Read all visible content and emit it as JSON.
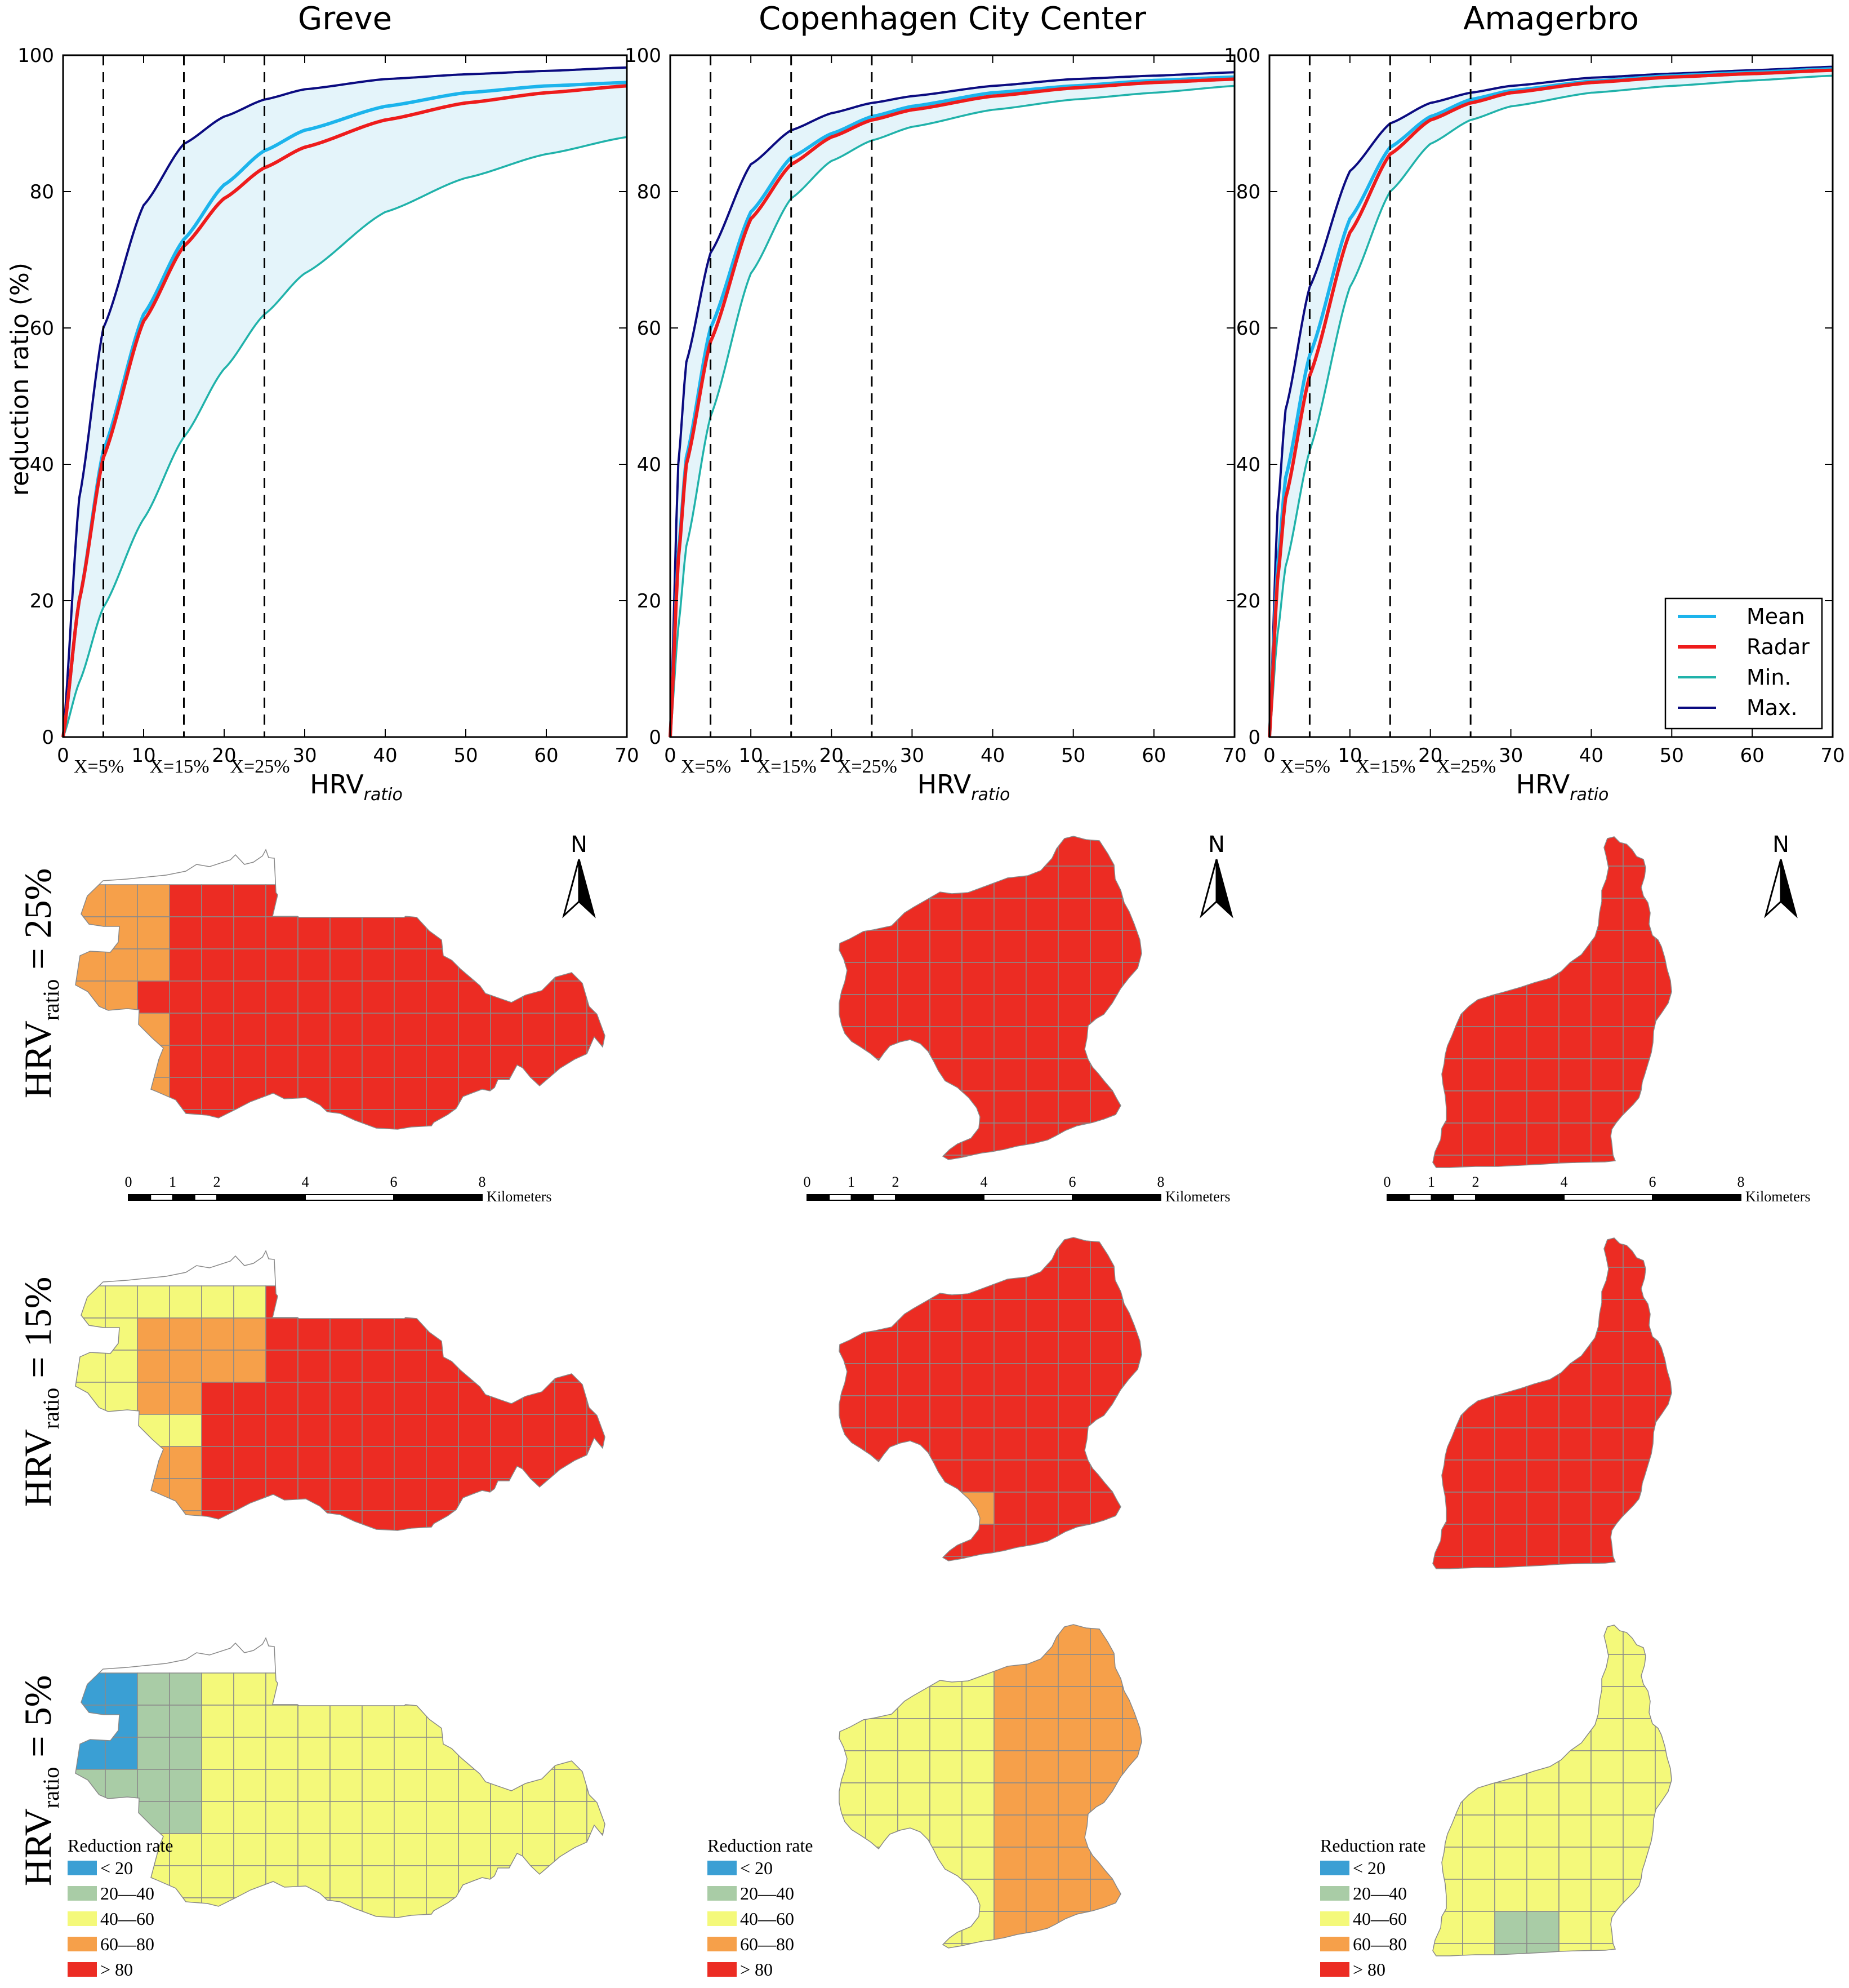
{
  "colors": {
    "mean": "#1cb4ec",
    "radar": "#ee1c1c",
    "min": "#20b2aa",
    "max": "#0b0b80",
    "band": "#e4f4fa",
    "class_lt20": "#3a9fd4",
    "class_20_40": "#a9cca6",
    "class_40_60": "#f4f97a",
    "class_60_80": "#f6a04a",
    "class_gt80": "#ec2c23"
  },
  "chart_data": [
    {
      "type": "line",
      "title": "Greve",
      "xlabel": "HRV",
      "xlabel_sub": "ratio",
      "ylabel": "reduction ratio (%)",
      "xlim": [
        0,
        70
      ],
      "ylim": [
        0,
        100
      ],
      "xticks": [
        "0",
        "10",
        "20",
        "30",
        "40",
        "50",
        "60",
        "70"
      ],
      "yticks": [
        "0",
        "20",
        "40",
        "60",
        "80",
        "100"
      ],
      "vlines": [
        5,
        15,
        25
      ],
      "vline_labels": [
        "X=5%",
        "X=15%",
        "X=25%"
      ],
      "x": [
        0,
        2,
        5,
        10,
        15,
        20,
        25,
        30,
        40,
        50,
        60,
        70
      ],
      "series": [
        {
          "name": "Mean",
          "values": [
            0,
            20,
            42,
            62,
            73,
            81,
            86,
            89,
            92.5,
            94.5,
            95.5,
            96
          ]
        },
        {
          "name": "Radar",
          "values": [
            0,
            20,
            41,
            61,
            72,
            79,
            83.5,
            86.5,
            90.5,
            93,
            94.5,
            95.5
          ]
        },
        {
          "name": "Min.",
          "values": [
            0,
            8,
            19,
            32,
            44,
            54,
            62,
            68,
            77,
            82,
            85.5,
            88
          ]
        },
        {
          "name": "Max.",
          "values": [
            0,
            35,
            60,
            78,
            87,
            91,
            93.5,
            95,
            96.5,
            97.2,
            97.7,
            98.2
          ]
        }
      ]
    },
    {
      "type": "line",
      "title": "Copenhagen City Center",
      "xlabel": "HRV",
      "xlabel_sub": "ratio",
      "ylabel": "",
      "xlim": [
        0,
        70
      ],
      "ylim": [
        0,
        100
      ],
      "xticks": [
        "0",
        "10",
        "20",
        "30",
        "40",
        "50",
        "60",
        "70"
      ],
      "yticks": [
        "0",
        "20",
        "40",
        "60",
        "80",
        "100"
      ],
      "vlines": [
        5,
        15,
        25
      ],
      "vline_labels": [
        "X=5%",
        "X=15%",
        "X=25%"
      ],
      "x": [
        0,
        1,
        2,
        5,
        10,
        15,
        20,
        25,
        30,
        40,
        50,
        60,
        70
      ],
      "series": [
        {
          "name": "Mean",
          "values": [
            0,
            27,
            41,
            60,
            77,
            85,
            88.5,
            91,
            92.5,
            94.5,
            95.5,
            96.3,
            96.8
          ]
        },
        {
          "name": "Radar",
          "values": [
            0,
            26,
            40,
            58,
            76,
            84,
            88,
            90.5,
            92,
            94,
            95.2,
            96,
            96.5
          ]
        },
        {
          "name": "Min.",
          "values": [
            0,
            16,
            28,
            47,
            68,
            79,
            84.5,
            87.5,
            89.5,
            92,
            93.5,
            94.5,
            95.5
          ]
        },
        {
          "name": "Max.",
          "values": [
            0,
            40,
            55,
            71,
            84,
            89,
            91.5,
            93,
            94,
            95.5,
            96.5,
            97,
            97.5
          ]
        }
      ]
    },
    {
      "type": "line",
      "title": "Amagerbro",
      "xlabel": "HRV",
      "xlabel_sub": "ratio",
      "ylabel": "",
      "xlim": [
        0,
        70
      ],
      "ylim": [
        0,
        100
      ],
      "xticks": [
        "0",
        "10",
        "20",
        "30",
        "40",
        "50",
        "60",
        "70"
      ],
      "yticks": [
        "0",
        "20",
        "40",
        "60",
        "80",
        "100"
      ],
      "vlines": [
        5,
        15,
        25
      ],
      "vline_labels": [
        "X=5%",
        "X=15%",
        "X=25%"
      ],
      "legend": [
        "Mean",
        "Radar",
        "Min.",
        "Max."
      ],
      "legend_position": "bottom-right",
      "x": [
        0,
        1,
        2,
        5,
        10,
        15,
        20,
        25,
        30,
        40,
        50,
        60,
        70
      ],
      "series": [
        {
          "name": "Mean",
          "values": [
            0,
            25,
            38,
            56,
            76,
            86.5,
            91,
            93.5,
            94.8,
            96.2,
            97,
            97.5,
            98
          ]
        },
        {
          "name": "Radar",
          "values": [
            0,
            23,
            35,
            53,
            74,
            85.5,
            90.5,
            93,
            94.5,
            96,
            96.8,
            97.3,
            97.8
          ]
        },
        {
          "name": "Min.",
          "values": [
            0,
            15,
            25,
            42,
            66,
            80,
            87,
            90.5,
            92.5,
            94.5,
            95.5,
            96.3,
            97
          ]
        },
        {
          "name": "Max.",
          "values": [
            0,
            33,
            48,
            66,
            83,
            90,
            93,
            94.5,
            95.5,
            96.7,
            97.3,
            97.8,
            98.3
          ]
        }
      ]
    }
  ],
  "maps": {
    "north_label": "N",
    "scale_numbers": [
      "0",
      "1",
      "2",
      "4",
      "6",
      "8"
    ],
    "scale_unit": "Kilometers",
    "row_labels": [
      {
        "main": "HRV",
        "sub": "ratio",
        "value": " = 25%"
      },
      {
        "main": "HRV",
        "sub": "ratio",
        "value": " = 15%"
      },
      {
        "main": "HRV",
        "sub": "ratio",
        "value": " = 5%"
      }
    ],
    "legend_title": "Reduction rate",
    "legend_items": [
      "< 20",
      "20—40",
      "40—60",
      "60—80",
      "> 80"
    ]
  }
}
